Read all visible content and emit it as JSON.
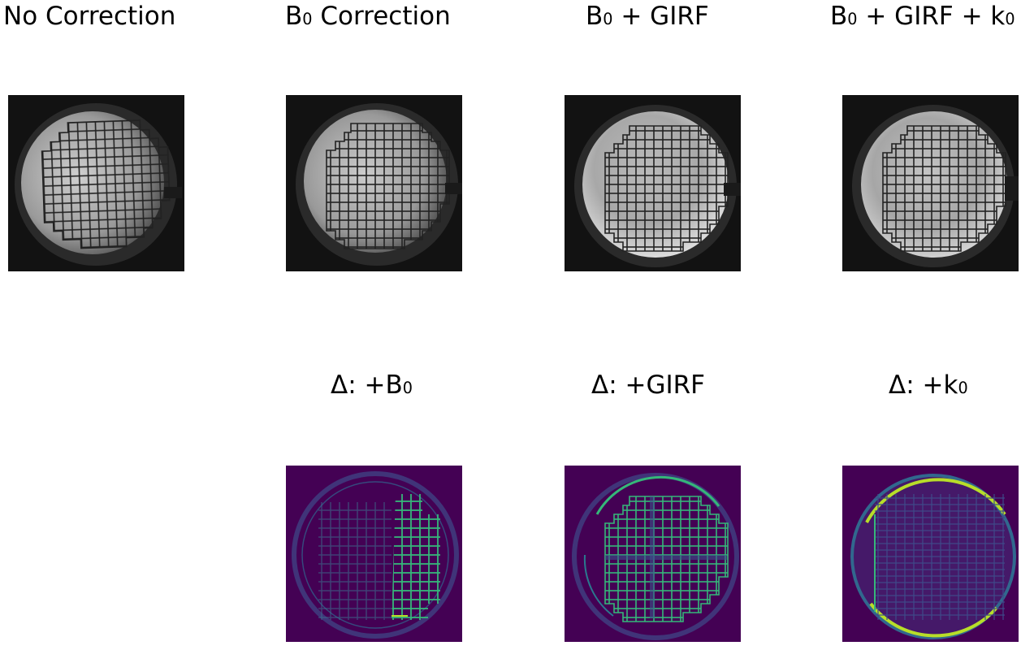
{
  "titles": {
    "no_correction": "No Correction",
    "b0_prefix": "B",
    "b0_sub": "0",
    "b0_correction_rest": " Correction",
    "b0_girf_rest": " + GIRF",
    "b0_girf_k0_mid": " + GIRF + k",
    "k_sub": "0",
    "delta_b0_prefix": "Δ: +B",
    "delta_b0_sub": "0",
    "delta_girf": "Δ: +GIRF",
    "delta_k0_prefix": "Δ: +k",
    "delta_k0_sub": "0"
  },
  "colors": {
    "mr_background": "#121212",
    "diff_background": "#440154",
    "diff_line": "#35b779",
    "diff_highlight": "#b8de29"
  }
}
